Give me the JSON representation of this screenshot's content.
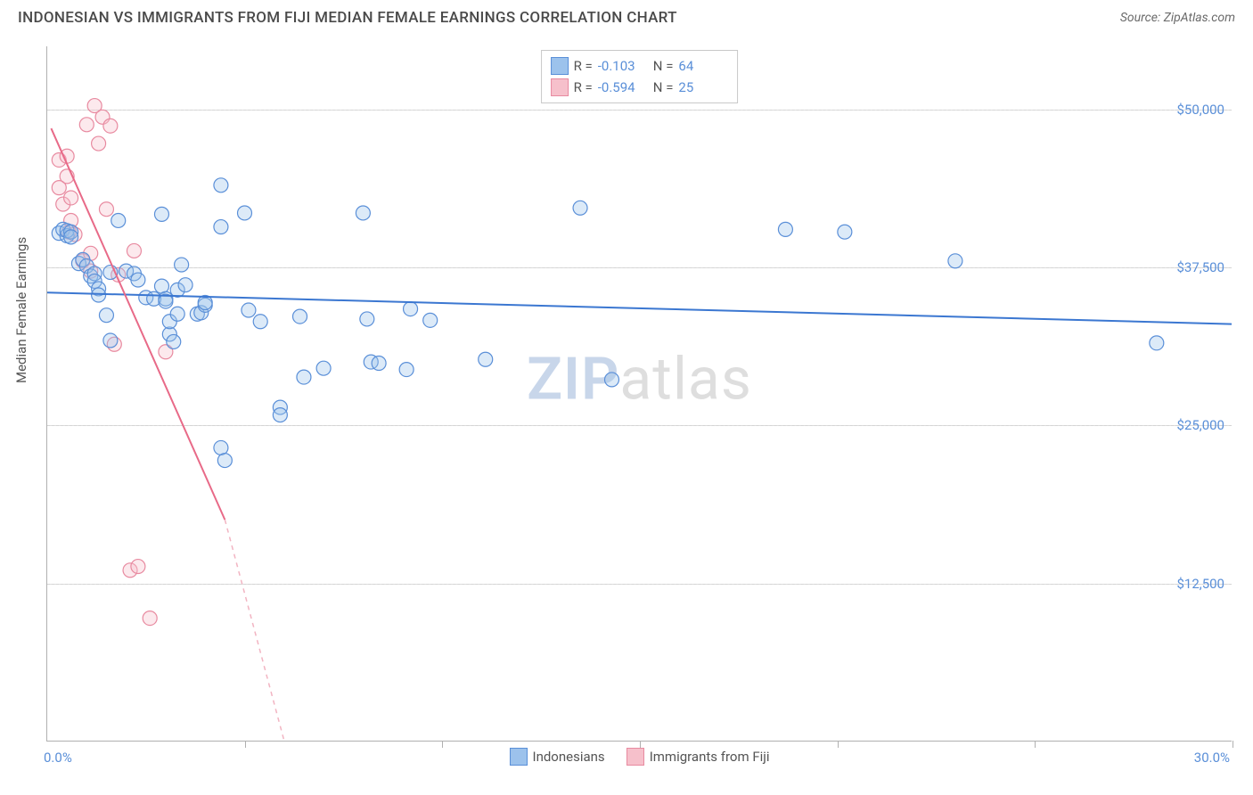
{
  "header": {
    "title": "INDONESIAN VS IMMIGRANTS FROM FIJI MEDIAN FEMALE EARNINGS CORRELATION CHART",
    "source_prefix": "Source: ",
    "source_name": "ZipAtlas.com"
  },
  "chart": {
    "type": "scatter",
    "ylabel": "Median Female Earnings",
    "xlim": [
      0,
      30
    ],
    "ylim": [
      0,
      55000
    ],
    "x_ticks": [
      0,
      5,
      10,
      15,
      20,
      25,
      30
    ],
    "x_tick_labels_shown": {
      "0": "0.0%",
      "30": "30.0%"
    },
    "y_gridlines": [
      12500,
      25000,
      37500,
      50000
    ],
    "y_tick_labels": [
      "$12,500",
      "$25,000",
      "$37,500",
      "$50,000"
    ],
    "bg_color": "#ffffff",
    "grid_color": "#d4d4d4",
    "axis_color": "#b0b0b0",
    "tick_label_color": "#5a8fd8",
    "ylabel_color": "#555555",
    "marker_radius": 8,
    "marker_stroke_width": 1.2,
    "marker_fill_opacity": 0.35,
    "trend_line_width": 2,
    "watermark": {
      "zip": "ZIP",
      "atlas": "atlas",
      "zip_color": "#c8d6ea",
      "atlas_color": "#dedede",
      "fontsize": 66
    }
  },
  "series": {
    "blue": {
      "label": "Indonesians",
      "fill": "#9cc2ec",
      "stroke": "#5a8fd8",
      "R": "-0.103",
      "N": "64",
      "trend": {
        "x1": 0,
        "y1": 35500,
        "x2": 30,
        "y2": 33000,
        "color": "#3b77d1"
      },
      "points": [
        [
          0.3,
          40200
        ],
        [
          0.4,
          40500
        ],
        [
          0.5,
          40000
        ],
        [
          0.5,
          40400
        ],
        [
          0.6,
          40300
        ],
        [
          0.6,
          39900
        ],
        [
          0.8,
          37800
        ],
        [
          0.9,
          38100
        ],
        [
          1.0,
          37600
        ],
        [
          1.1,
          36800
        ],
        [
          1.2,
          37000
        ],
        [
          1.2,
          36400
        ],
        [
          1.3,
          35800
        ],
        [
          1.3,
          35300
        ],
        [
          1.6,
          37100
        ],
        [
          1.5,
          33700
        ],
        [
          1.6,
          31700
        ],
        [
          1.8,
          41200
        ],
        [
          2.0,
          37200
        ],
        [
          2.2,
          37000
        ],
        [
          2.3,
          36500
        ],
        [
          2.5,
          35100
        ],
        [
          2.7,
          35000
        ],
        [
          2.9,
          36000
        ],
        [
          2.9,
          41700
        ],
        [
          3.0,
          35000
        ],
        [
          3.0,
          34800
        ],
        [
          3.1,
          32200
        ],
        [
          3.1,
          33200
        ],
        [
          3.3,
          33800
        ],
        [
          3.3,
          35700
        ],
        [
          3.2,
          31600
        ],
        [
          3.4,
          37700
        ],
        [
          3.5,
          36100
        ],
        [
          3.8,
          33800
        ],
        [
          3.9,
          33900
        ],
        [
          4.0,
          34500
        ],
        [
          4.0,
          34700
        ],
        [
          4.4,
          44000
        ],
        [
          4.4,
          40700
        ],
        [
          4.4,
          23200
        ],
        [
          4.5,
          22200
        ],
        [
          5.0,
          41800
        ],
        [
          5.1,
          34100
        ],
        [
          5.4,
          33200
        ],
        [
          5.9,
          26400
        ],
        [
          5.9,
          25800
        ],
        [
          6.4,
          33600
        ],
        [
          6.5,
          28800
        ],
        [
          7.0,
          29500
        ],
        [
          8.0,
          41800
        ],
        [
          8.1,
          33400
        ],
        [
          8.2,
          30000
        ],
        [
          8.4,
          29900
        ],
        [
          9.7,
          33300
        ],
        [
          9.2,
          34200
        ],
        [
          9.1,
          29400
        ],
        [
          11.1,
          30200
        ],
        [
          13.5,
          42200
        ],
        [
          14.3,
          28600
        ],
        [
          18.7,
          40500
        ],
        [
          20.2,
          40300
        ],
        [
          23.0,
          38000
        ],
        [
          28.1,
          31500
        ]
      ]
    },
    "pink": {
      "label": "Immigrants from Fiji",
      "fill": "#f6c0cb",
      "stroke": "#e88aa0",
      "R": "-0.594",
      "N": "25",
      "trend_solid": {
        "x1": 0.1,
        "y1": 48500,
        "x2": 4.5,
        "y2": 17500,
        "color": "#e86a88"
      },
      "trend_dash": {
        "x1": 4.5,
        "y1": 17500,
        "x2": 6.0,
        "y2": 0,
        "color": "#f2b4c2"
      },
      "points": [
        [
          0.3,
          46000
        ],
        [
          0.5,
          46300
        ],
        [
          0.5,
          44700
        ],
        [
          0.3,
          43800
        ],
        [
          0.4,
          42500
        ],
        [
          0.6,
          43000
        ],
        [
          0.6,
          41200
        ],
        [
          0.55,
          40300
        ],
        [
          0.7,
          40100
        ],
        [
          0.9,
          38000
        ],
        [
          1.1,
          38600
        ],
        [
          1.1,
          37200
        ],
        [
          1.0,
          48800
        ],
        [
          1.2,
          50300
        ],
        [
          1.4,
          49400
        ],
        [
          1.6,
          48700
        ],
        [
          1.3,
          47300
        ],
        [
          1.5,
          42100
        ],
        [
          1.7,
          31400
        ],
        [
          1.8,
          36900
        ],
        [
          2.2,
          38800
        ],
        [
          2.1,
          13500
        ],
        [
          2.3,
          13800
        ],
        [
          2.6,
          9700
        ],
        [
          3.0,
          30800
        ]
      ]
    }
  },
  "legend_top": {
    "R_label": "R =",
    "N_label": "N ="
  }
}
